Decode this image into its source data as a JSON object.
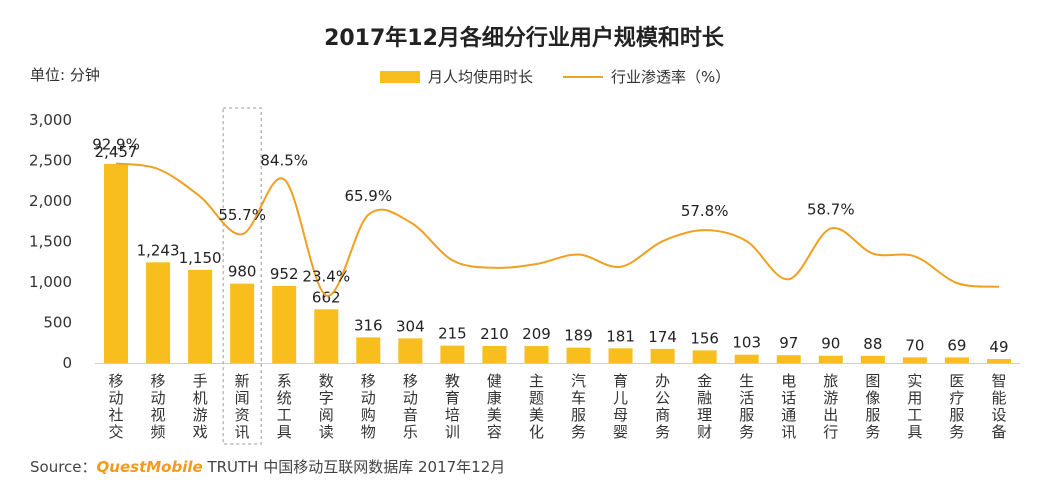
{
  "chart_data": {
    "type": "bar",
    "title": "2017年12月各细分行业用户规模和时长",
    "unit_label": "单位: 分钟",
    "categories": [
      "移动社交",
      "移动视频",
      "手机游戏",
      "新闻资讯",
      "系统工具",
      "数字阅读",
      "移动购物",
      "移动音乐",
      "教育培训",
      "健康美容",
      "主题美化",
      "汽车服务",
      "育儿母婴",
      "办公商务",
      "金融理财",
      "生活服务",
      "电话通讯",
      "旅游出行",
      "图像服务",
      "实用工具",
      "医疗服务",
      "智能设备"
    ],
    "series": [
      {
        "name": "月人均使用时长",
        "type": "bar",
        "values": [
          2457,
          1243,
          1150,
          980,
          952,
          662,
          316,
          304,
          215,
          210,
          209,
          189,
          181,
          174,
          156,
          103,
          97,
          90,
          88,
          70,
          69,
          49
        ],
        "labels": [
          "2,457",
          "1,243",
          "1,150",
          "980",
          "952",
          "662",
          "316",
          "304",
          "215",
          "210",
          "209",
          "189",
          "181",
          "174",
          "156",
          "103",
          "97",
          "90",
          "88",
          "70",
          "69",
          "49"
        ]
      },
      {
        "name": "行业渗透率（%）",
        "type": "line",
        "values": [
          92.9,
          90.0,
          75.5,
          55.7,
          84.5,
          23.4,
          65.9,
          62.0,
          42.0,
          38.0,
          40.0,
          45.0,
          38.5,
          52.0,
          57.8,
          52.0,
          32.0,
          58.7,
          45.5,
          44.0,
          30.0,
          28.0
        ],
        "shown_labels": [
          {
            "index": 0,
            "text": "92.9%"
          },
          {
            "index": 3,
            "text": "55.7%"
          },
          {
            "index": 4,
            "text": "84.5%"
          },
          {
            "index": 5,
            "text": "23.4%"
          },
          {
            "index": 6,
            "text": "65.9%"
          },
          {
            "index": 14,
            "text": "57.8%"
          },
          {
            "index": 17,
            "text": "58.7%"
          }
        ]
      }
    ],
    "yaxis": {
      "min": 0,
      "max": 3000,
      "ticks": [
        0,
        500,
        1000,
        1500,
        2000,
        2500,
        3000
      ],
      "tick_labels": [
        "0",
        "500",
        "1,000",
        "1,500",
        "2,000",
        "2,500",
        "3,000"
      ]
    },
    "highlight_category_index": 3,
    "legend_position": "top-center",
    "colors": {
      "bar": "#F7BE1E",
      "line": "#F0A020"
    }
  },
  "legend": {
    "bar_label": "月人均使用时长",
    "line_label": "行业渗透率（%）"
  },
  "source": {
    "prefix": "Source：",
    "brand": "QuestMobile",
    "rest": " TRUTH 中国移动互联网数据库 2017年12月"
  }
}
